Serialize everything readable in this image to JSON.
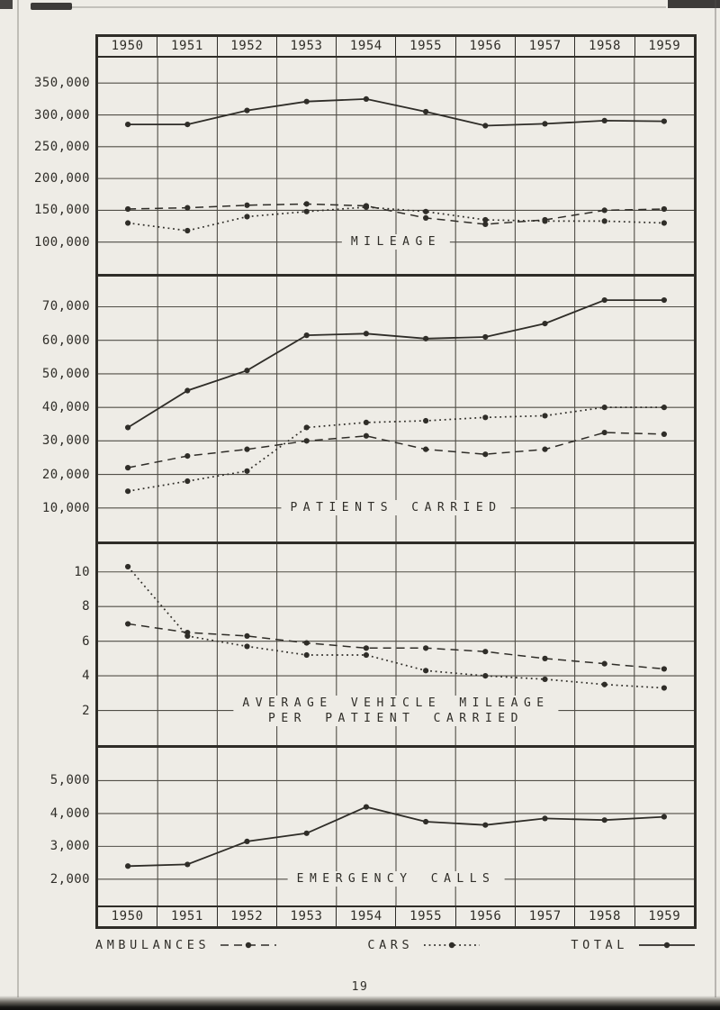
{
  "page": {
    "number": "19",
    "paper_color": "#eeece6",
    "ink_color": "#2f2d28"
  },
  "years": [
    "1950",
    "1951",
    "1952",
    "1953",
    "1954",
    "1955",
    "1956",
    "1957",
    "1958",
    "1959"
  ],
  "legend": {
    "items": [
      {
        "label": "AMBULANCES",
        "series": "ambulances",
        "line_style": "dashed"
      },
      {
        "label": "CARS",
        "series": "cars",
        "line_style": "dotted"
      },
      {
        "label": "TOTAL",
        "series": "total",
        "line_style": "solid"
      }
    ]
  },
  "chart_data": [
    {
      "type": "line",
      "title": "MILEAGE",
      "title_lines": [
        "MILEAGE"
      ],
      "categories": [
        "1950",
        "1951",
        "1952",
        "1953",
        "1954",
        "1955",
        "1956",
        "1957",
        "1958",
        "1959"
      ],
      "ylim": [
        50000,
        390000
      ],
      "title_anchor_value": 100000,
      "yticks": [
        {
          "value": 350000,
          "label": "350,000"
        },
        {
          "value": 300000,
          "label": "300,000"
        },
        {
          "value": 250000,
          "label": "250,000"
        },
        {
          "value": 200000,
          "label": "200,000"
        },
        {
          "value": 150000,
          "label": "150,000"
        },
        {
          "value": 100000,
          "label": "100,000"
        }
      ],
      "series": [
        {
          "name": "total",
          "line_style": "solid",
          "values": [
            285000,
            285000,
            307000,
            321000,
            325000,
            305000,
            283000,
            286000,
            291000,
            290000
          ]
        },
        {
          "name": "ambulances",
          "line_style": "dashed",
          "values": [
            152000,
            154000,
            158000,
            160000,
            157000,
            138000,
            128000,
            135000,
            150000,
            152000
          ]
        },
        {
          "name": "cars",
          "line_style": "dotted",
          "values": [
            130000,
            118000,
            140000,
            148000,
            155000,
            148000,
            135000,
            133000,
            133000,
            130000
          ]
        }
      ]
    },
    {
      "type": "line",
      "title": "PATIENTS CARRIED",
      "title_lines": [
        "PATIENTS CARRIED"
      ],
      "categories": [
        "1950",
        "1951",
        "1952",
        "1953",
        "1954",
        "1955",
        "1956",
        "1957",
        "1958",
        "1959"
      ],
      "ylim": [
        0,
        79000
      ],
      "title_anchor_value": 10000,
      "yticks": [
        {
          "value": 70000,
          "label": "70,000"
        },
        {
          "value": 60000,
          "label": "60,000"
        },
        {
          "value": 50000,
          "label": "50,000"
        },
        {
          "value": 40000,
          "label": "40,000"
        },
        {
          "value": 30000,
          "label": "30,000"
        },
        {
          "value": 20000,
          "label": "20,000"
        },
        {
          "value": 10000,
          "label": "10,000"
        }
      ],
      "series": [
        {
          "name": "total",
          "line_style": "solid",
          "values": [
            34000,
            45000,
            51000,
            61500,
            62000,
            60500,
            61000,
            65000,
            72000,
            72000
          ]
        },
        {
          "name": "ambulances",
          "line_style": "dashed",
          "values": [
            22000,
            25500,
            27500,
            30000,
            31500,
            27500,
            26000,
            27500,
            32500,
            32000
          ]
        },
        {
          "name": "cars",
          "line_style": "dotted",
          "values": [
            15000,
            18000,
            21000,
            34000,
            35500,
            36000,
            37000,
            37500,
            40000,
            40000
          ]
        }
      ]
    },
    {
      "type": "line",
      "title": "AVERAGE VEHICLE MILEAGE PER PATIENT CARRIED",
      "title_lines": [
        "AVERAGE VEHICLE MILEAGE",
        "PER PATIENT CARRIED"
      ],
      "categories": [
        "1950",
        "1951",
        "1952",
        "1953",
        "1954",
        "1955",
        "1956",
        "1957",
        "1958",
        "1959"
      ],
      "ylim": [
        0,
        11.6
      ],
      "title_anchor_value": 2,
      "yticks": [
        {
          "value": 10,
          "label": "10"
        },
        {
          "value": 8,
          "label": "8"
        },
        {
          "value": 6,
          "label": "6"
        },
        {
          "value": 4,
          "label": "4"
        },
        {
          "value": 2,
          "label": "2"
        }
      ],
      "series": [
        {
          "name": "ambulances",
          "line_style": "dashed",
          "values": [
            7.0,
            6.5,
            6.3,
            5.9,
            5.6,
            5.6,
            5.4,
            5.0,
            4.7,
            4.4
          ]
        },
        {
          "name": "cars",
          "line_style": "dotted",
          "values": [
            10.3,
            6.3,
            5.7,
            5.2,
            5.2,
            4.3,
            4.0,
            3.8,
            3.5,
            3.3
          ]
        }
      ]
    },
    {
      "type": "line",
      "title": "EMERGENCY CALLS",
      "title_lines": [
        "EMERGENCY CALLS"
      ],
      "categories": [
        "1950",
        "1951",
        "1952",
        "1953",
        "1954",
        "1955",
        "1956",
        "1957",
        "1958",
        "1959"
      ],
      "ylim": [
        1200,
        6000
      ],
      "title_anchor_value": 2000,
      "yticks": [
        {
          "value": 5000,
          "label": "5,000"
        },
        {
          "value": 4000,
          "label": "4,000"
        },
        {
          "value": 3000,
          "label": "3,000"
        },
        {
          "value": 2000,
          "label": "2,000"
        }
      ],
      "series": [
        {
          "name": "total",
          "line_style": "solid",
          "values": [
            2400,
            2450,
            3150,
            3400,
            4200,
            3750,
            3650,
            3850,
            3800,
            3900
          ]
        }
      ]
    }
  ]
}
